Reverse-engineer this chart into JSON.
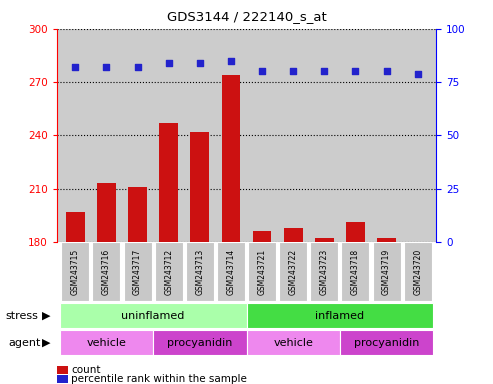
{
  "title": "GDS3144 / 222140_s_at",
  "samples": [
    "GSM243715",
    "GSM243716",
    "GSM243717",
    "GSM243712",
    "GSM243713",
    "GSM243714",
    "GSM243721",
    "GSM243722",
    "GSM243723",
    "GSM243718",
    "GSM243719",
    "GSM243720"
  ],
  "bar_values": [
    197,
    213,
    211,
    247,
    242,
    274,
    186,
    188,
    182,
    191,
    182,
    180
  ],
  "dot_values": [
    82,
    82,
    82,
    84,
    84,
    85,
    80,
    80,
    80,
    80,
    80,
    79
  ],
  "ylim_left": [
    180,
    300
  ],
  "ylim_right": [
    0,
    100
  ],
  "yticks_left": [
    180,
    210,
    240,
    270,
    300
  ],
  "yticks_right": [
    0,
    25,
    50,
    75,
    100
  ],
  "bar_color": "#cc1111",
  "dot_color": "#2222cc",
  "bg_color": "#cccccc",
  "plot_bg": "#f0f0f0",
  "stress_uninflamed_color": "#aaffaa",
  "stress_inflamed_color": "#44dd44",
  "agent_vehicle_color": "#ee88ee",
  "agent_procyanidin_color": "#cc44cc",
  "stress_label": "stress",
  "agent_label": "agent",
  "uninflamed_label": "uninflamed",
  "inflamed_label": "inflamed",
  "vehicle_label": "vehicle",
  "procyanidin_label": "procyanidin",
  "legend_count": "count",
  "legend_pct": "percentile rank within the sample"
}
